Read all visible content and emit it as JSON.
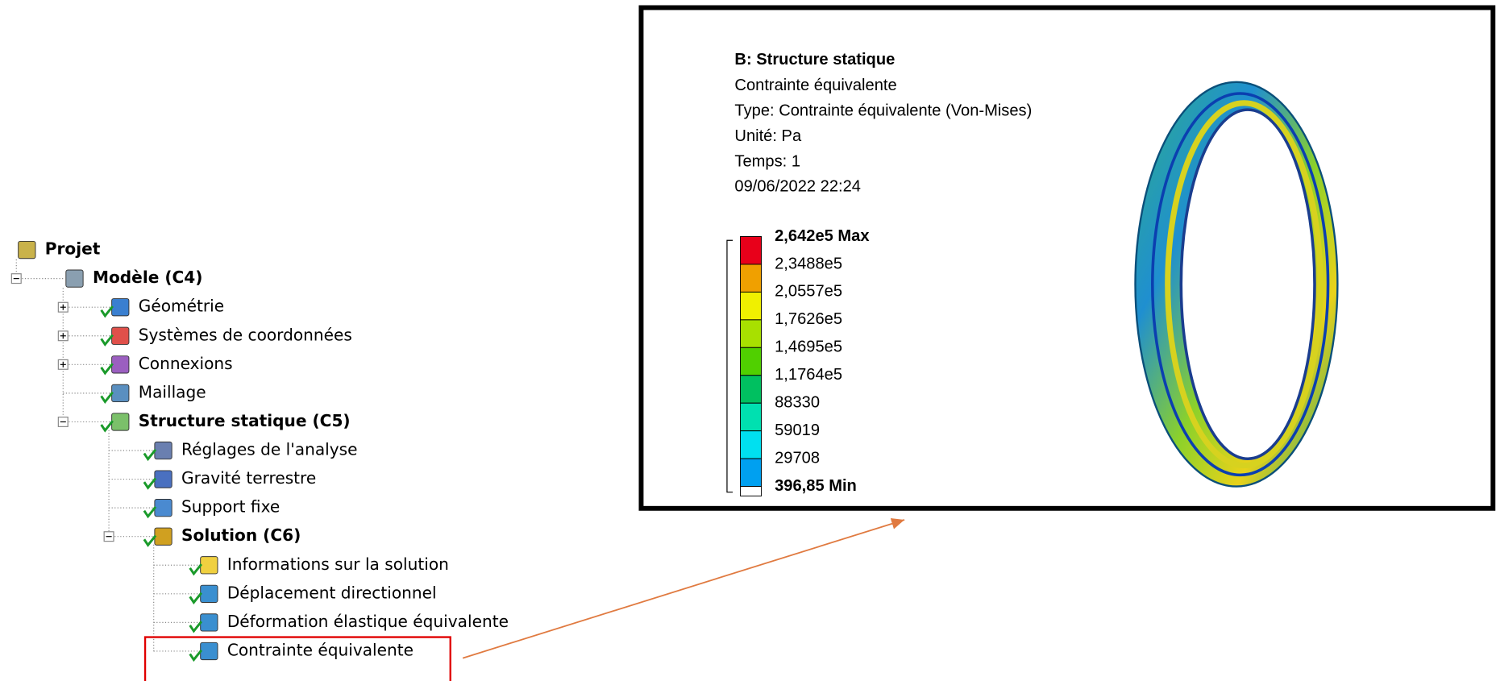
{
  "tree": {
    "nodes": [
      {
        "label": "Projet",
        "level": 0,
        "bold": true
      },
      {
        "label": "Modèle (C4)",
        "level": 1,
        "bold": true
      },
      {
        "label": "Géométrie",
        "level": 2,
        "bold": false
      },
      {
        "label": "Systèmes de coordonnées",
        "level": 2,
        "bold": false
      },
      {
        "label": "Connexions",
        "level": 2,
        "bold": false
      },
      {
        "label": "Maillage",
        "level": 2,
        "bold": false
      },
      {
        "label": "Structure statique (C5)",
        "level": 2,
        "bold": true
      },
      {
        "label": "Réglages de l'analyse",
        "level": 3,
        "bold": false
      },
      {
        "label": "Gravité terrestre",
        "level": 3,
        "bold": false
      },
      {
        "label": "Support fixe",
        "level": 3,
        "bold": false
      },
      {
        "label": "Solution (C6)",
        "level": 3,
        "bold": true
      },
      {
        "label": "Informations sur la solution",
        "level": 4,
        "bold": false
      },
      {
        "label": "Déplacement directionnel",
        "level": 4,
        "bold": false
      },
      {
        "label": "Déformation élastique équivalente",
        "level": 4,
        "bold": false
      },
      {
        "label": "Contrainte équivalente",
        "level": 4,
        "bold": false
      }
    ]
  },
  "panel": {
    "title": "B: Structure statique",
    "lines": [
      "Contrainte équivalente",
      "Type: Contrainte équivalente (Von-Mises)",
      "Unité: Pa",
      "Temps: 1",
      "09/06/2022 22:24"
    ]
  },
  "legend": {
    "labels": [
      "2,642e5 Max",
      "2,3488e5",
      "2,0557e5",
      "1,7626e5",
      "1,4695e5",
      "1,1764e5",
      "88330",
      "59019",
      "29708",
      "396,85 Min"
    ]
  }
}
